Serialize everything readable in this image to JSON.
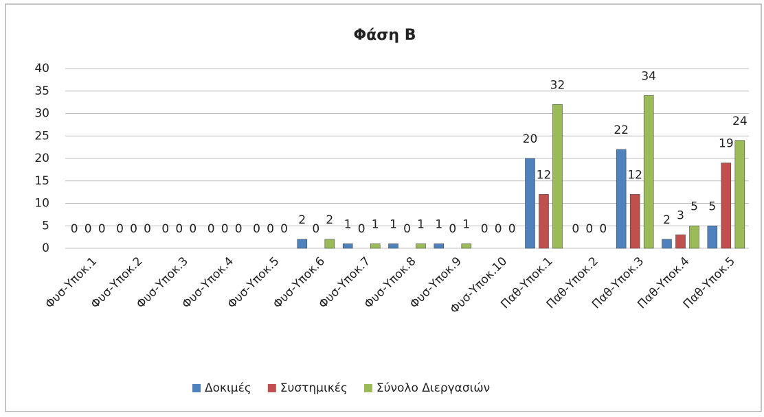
{
  "chart_data": {
    "type": "bar",
    "title": "Φάση Β",
    "categories": [
      "Φυσ-Υποκ.1",
      "Φυσ-Υποκ.2",
      "Φυσ-Υποκ.3",
      "Φυσ-Υποκ.4",
      "Φυσ-Υποκ.5",
      "Φυσ-Υποκ.6",
      "Φυσ-Υποκ.7",
      "Φυσ-Υποκ.8",
      "Φυσ-Υποκ.9",
      "Φυσ-Υποκ.10",
      "Παθ-Υποκ.1",
      "Παθ-Υποκ.2",
      "Παθ-Υποκ.3",
      "Παθ-Υποκ.4",
      "Παθ-Υποκ.5"
    ],
    "series": [
      {
        "name": "Δοκιμές",
        "color": "#4f81bd",
        "values": [
          0,
          0,
          0,
          0,
          0,
          2,
          1,
          1,
          1,
          0,
          20,
          0,
          22,
          2,
          5
        ]
      },
      {
        "name": "Συστημικές",
        "color": "#c0504d",
        "values": [
          0,
          0,
          0,
          0,
          0,
          0,
          0,
          0,
          0,
          0,
          12,
          0,
          12,
          3,
          19
        ]
      },
      {
        "name": "Σύνολο Διεργασιών",
        "color": "#9bbb59",
        "values": [
          0,
          0,
          0,
          0,
          0,
          2,
          1,
          1,
          1,
          0,
          32,
          0,
          34,
          5,
          24
        ]
      }
    ],
    "ylim": [
      0,
      40
    ],
    "yticks": [
      0,
      5,
      10,
      15,
      20,
      25,
      30,
      35,
      40
    ],
    "grid": true,
    "legend": "bottom"
  }
}
